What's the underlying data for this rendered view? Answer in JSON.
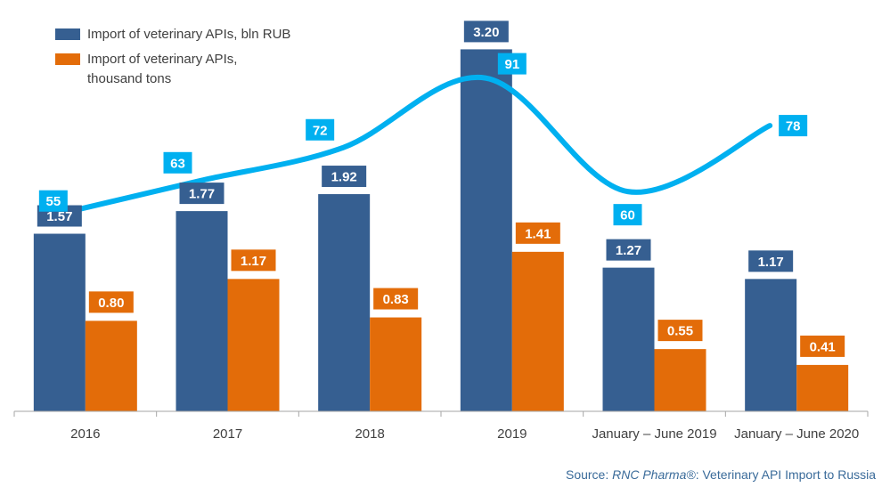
{
  "legend": {
    "items": [
      {
        "label": "Import of veterinary APIs, bln RUB",
        "color": "#365F91"
      },
      {
        "label": "Import of veterinary APIs, thousand tons",
        "color": "#E36C09"
      }
    ]
  },
  "source": {
    "prefix": "Source: ",
    "brand": "RNC Pharma®",
    "suffix": ": Veterinary API Import to Russia"
  },
  "chart_data": {
    "type": "bar",
    "categories": [
      "2016",
      "2017",
      "2018",
      "2019",
      "January – June 2019",
      "January – June 2020"
    ],
    "series": [
      {
        "name": "Import of veterinary APIs, bln RUB",
        "values": [
          1.57,
          1.77,
          1.92,
          3.2,
          1.27,
          1.17
        ],
        "labels": [
          "1.57",
          "1.77",
          "1.92",
          "3.20",
          "1.27",
          "1.17"
        ],
        "color": "#365F91"
      },
      {
        "name": "Import of veterinary APIs, thousand tons",
        "values": [
          0.8,
          1.17,
          0.83,
          1.41,
          0.55,
          0.41
        ],
        "labels": [
          "0.80",
          "1.17",
          "0.83",
          "1.41",
          "0.55",
          "0.41"
        ],
        "color": "#E36C09"
      }
    ],
    "line_series": {
      "type": "line",
      "values": [
        55,
        63,
        72,
        91,
        60,
        78
      ],
      "labels": [
        "55",
        "63",
        "72",
        "91",
        "60",
        "78"
      ],
      "color": "#00B0F0",
      "smooth": true
    },
    "ylim": [
      0,
      3.4
    ],
    "line_ylim": [
      0,
      105
    ],
    "grid": false,
    "legend_position": "top-left"
  }
}
